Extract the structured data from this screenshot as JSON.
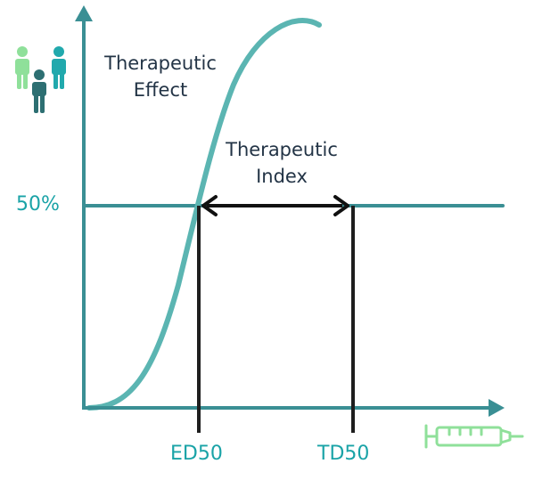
{
  "labels": {
    "therapeutic_effect_line1": "Therapeutic",
    "therapeutic_effect_line2": "Effect",
    "therapeutic_index_line1": "Therapeutic",
    "therapeutic_index_line2": "Index",
    "fifty_percent": "50%",
    "ed50": "ED50",
    "td50": "TD50"
  },
  "icons": {
    "y_axis_icon": "people-icon",
    "x_axis_icon": "syringe-icon"
  },
  "colors": {
    "curve": "#5bb5b2",
    "axis": "#3a8f94",
    "markers": "#1e1e1e",
    "accent_text": "#1aa3a7",
    "dark_text": "#233446",
    "people_light": "#8fe09a",
    "people_dark": "#2d6f72",
    "people_teal": "#21a9ad",
    "syringe": "#8fe09a"
  }
}
